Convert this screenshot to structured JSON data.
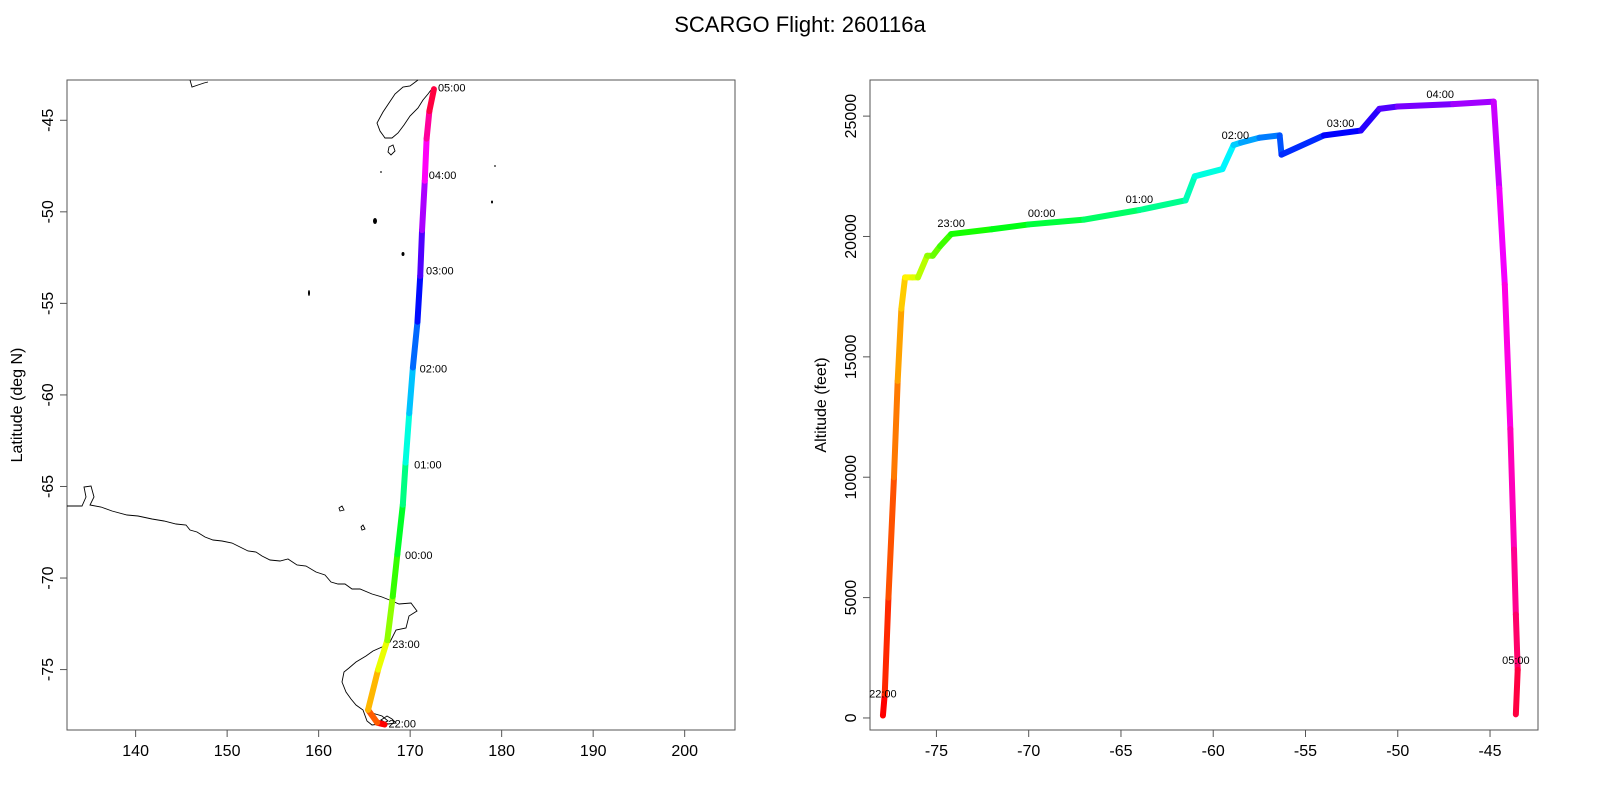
{
  "title": "SCARGO Flight: 260116a",
  "chart_data": [
    {
      "type": "line",
      "name": "map",
      "xlabel": "",
      "ylabel": "Latitude (deg N)",
      "xlim": [
        132.5,
        205.5
      ],
      "ylim": [
        -78.3,
        -42.8
      ],
      "xticks": [
        140,
        150,
        160,
        170,
        180,
        190,
        200
      ],
      "yticks": [
        -45,
        -50,
        -55,
        -60,
        -65,
        -70,
        -75
      ],
      "color_by": "time (rainbow: red → yellow → green → cyan → blue → magenta → red)",
      "series": [
        {
          "x": [
            167.2,
            166.4,
            165.4,
            166.5,
            167.5,
            168.1,
            168.6,
            169.2,
            169.5,
            169.9,
            170.3,
            170.8,
            171.1,
            171.3,
            171.6,
            171.8,
            172.1,
            172.6
          ],
          "y": [
            -78.0,
            -77.9,
            -77.2,
            -75.0,
            -73.4,
            -71.0,
            -68.7,
            -66.0,
            -63.7,
            -61.0,
            -58.5,
            -56.0,
            -53.5,
            -51.0,
            -48.3,
            -46.0,
            -44.5,
            -43.3
          ]
        }
      ],
      "time_labels": [
        {
          "text": "22:00",
          "x": 167.2,
          "y": -77.95
        },
        {
          "text": "23:00",
          "x": 167.6,
          "y": -73.6
        },
        {
          "text": "00:00",
          "x": 169.0,
          "y": -68.75
        },
        {
          "text": "01:00",
          "x": 170.0,
          "y": -63.8
        },
        {
          "text": "02:00",
          "x": 170.6,
          "y": -58.55
        },
        {
          "text": "03:00",
          "x": 171.3,
          "y": -53.2
        },
        {
          "text": "04:00",
          "x": 171.6,
          "y": -48.0
        },
        {
          "text": "05:00",
          "x": 172.6,
          "y": -43.2
        }
      ]
    },
    {
      "type": "line",
      "name": "profile",
      "xlabel": "",
      "ylabel": "Altitude (feet)",
      "xlim": [
        -78.6,
        -42.4
      ],
      "ylim": [
        -500,
        26500
      ],
      "xticks": [
        -75,
        -70,
        -65,
        -60,
        -55,
        -50,
        -45
      ],
      "yticks": [
        0,
        5000,
        10000,
        15000,
        20000,
        25000
      ],
      "color_by": "time (rainbow: red → yellow → green → cyan → blue → magenta → red)",
      "series": [
        {
          "x": [
            -77.9,
            -77.8,
            -77.6,
            -77.3,
            -77.1,
            -76.9,
            -76.7,
            -76.3,
            -76.0,
            -75.5,
            -75.2,
            -74.8,
            -74.2,
            -72.0,
            -70.0,
            -67.0,
            -64.0,
            -61.5,
            -61.0,
            -59.5,
            -58.9,
            -58.5,
            -57.5,
            -56.4,
            -56.3,
            -54.0,
            -52.0,
            -51.0,
            -50.0,
            -47.0,
            -44.8,
            -44.5,
            -44.2,
            -43.9,
            -43.7,
            -43.6,
            -43.5,
            -43.6
          ],
          "y": [
            100,
            1000,
            5000,
            10000,
            14000,
            17000,
            18300,
            18300,
            18300,
            19200,
            19200,
            19600,
            20100,
            20300,
            20500,
            20700,
            21100,
            21500,
            22500,
            22800,
            23800,
            23900,
            24100,
            24200,
            23400,
            24200,
            24400,
            25300,
            25400,
            25500,
            25600,
            22000,
            18000,
            12000,
            7000,
            4300,
            2000,
            150
          ]
        }
      ],
      "time_labels": [
        {
          "text": "22:00",
          "x": -77.9,
          "y": 600
        },
        {
          "text": "23:00",
          "x": -74.2,
          "y": 20150
        },
        {
          "text": "00:00",
          "x": -69.3,
          "y": 20550
        },
        {
          "text": "01:00",
          "x": -64.0,
          "y": 21150
        },
        {
          "text": "02:00",
          "x": -58.8,
          "y": 23800
        },
        {
          "text": "03:00",
          "x": -53.1,
          "y": 24300
        },
        {
          "text": "04:00",
          "x": -47.7,
          "y": 25500
        },
        {
          "text": "05:00",
          "x": -43.6,
          "y": 2000
        }
      ]
    }
  ]
}
